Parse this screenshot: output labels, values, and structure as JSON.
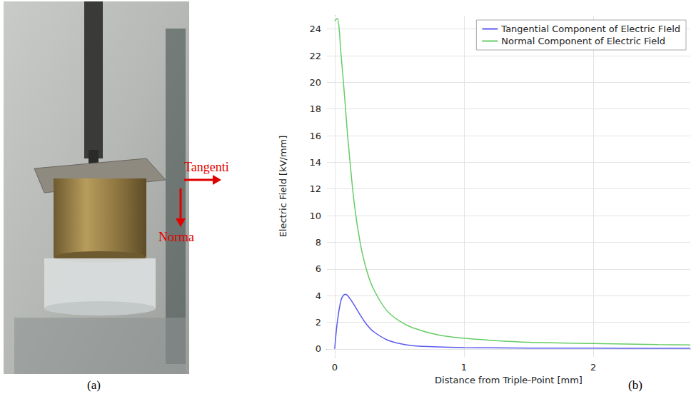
{
  "figure": {
    "panel_a": {
      "caption": "(a)",
      "labels": [
        "Tangenti",
        "Norma"
      ]
    },
    "panel_b": {
      "caption": "(b)"
    }
  },
  "chart_data": {
    "type": "line",
    "xlabel": "Distance from Triple-Point [mm]",
    "ylabel": "Electric Field [kV/mm]",
    "x": [
      0,
      0.02,
      0.05,
      0.08,
      0.1,
      0.15,
      0.2,
      0.25,
      0.3,
      0.4,
      0.5,
      0.6,
      0.8,
      1.0,
      1.2,
      1.5,
      2.0,
      2.5,
      2.75
    ],
    "series": [
      {
        "name": "Tangential Component of Electric FIeld",
        "color": "#5a5af0",
        "values": [
          0,
          2,
          3.7,
          4.1,
          4.0,
          3.3,
          2.5,
          1.8,
          1.3,
          0.7,
          0.4,
          0.25,
          0.15,
          0.1,
          0.08,
          0.06,
          0.05,
          0.04,
          0.04
        ]
      },
      {
        "name": "Normal Component of Electric Field",
        "color": "#66cc66",
        "values": [
          24.6,
          24.8,
          22,
          18.5,
          16,
          11,
          7.8,
          5.8,
          4.5,
          2.9,
          2.1,
          1.6,
          1.05,
          0.8,
          0.65,
          0.5,
          0.4,
          0.32,
          0.3
        ]
      }
    ],
    "xlim": [
      -0.06,
      2.75
    ],
    "xticks": [
      0,
      1,
      2
    ],
    "ylim": [
      -0.6,
      25
    ],
    "yticks": [
      0,
      2,
      4,
      6,
      8,
      10,
      12,
      14,
      16,
      18,
      20,
      22,
      24
    ],
    "grid": true,
    "legend": "upper right"
  }
}
